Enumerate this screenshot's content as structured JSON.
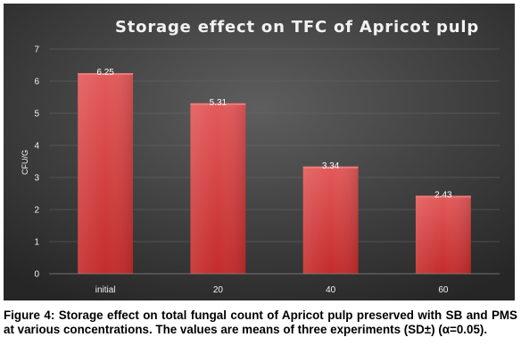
{
  "chart_data": {
    "type": "bar",
    "title": "Storage effect on TFC of Apricot pulp",
    "xlabel": "",
    "ylabel": "CFU/G",
    "categories": [
      "initial",
      "20",
      "40",
      "60"
    ],
    "values": [
      6.25,
      5.31,
      3.34,
      2.43
    ],
    "value_labels": [
      "6.25",
      "5.31",
      "3.34",
      "2.43"
    ],
    "ylim": [
      0,
      7
    ],
    "yticks": [
      "0",
      "1",
      "2",
      "3",
      "4",
      "5",
      "6",
      "7"
    ],
    "grid": true,
    "legend": "none",
    "colors": {
      "background_light": "#5e5e5e",
      "background_dark": "#262626",
      "bar_top": "#e35a5a",
      "bar_bottom": "#c42b2b",
      "text": "#f2f2f2",
      "grid": "#6a6a6a"
    }
  },
  "caption": {
    "text": "Figure 4: Storage effect on total fungal count of Apricot pulp preserved with SB and PMS at various concentrations. The values are means of three experiments (SD±) (α=0.05)."
  }
}
